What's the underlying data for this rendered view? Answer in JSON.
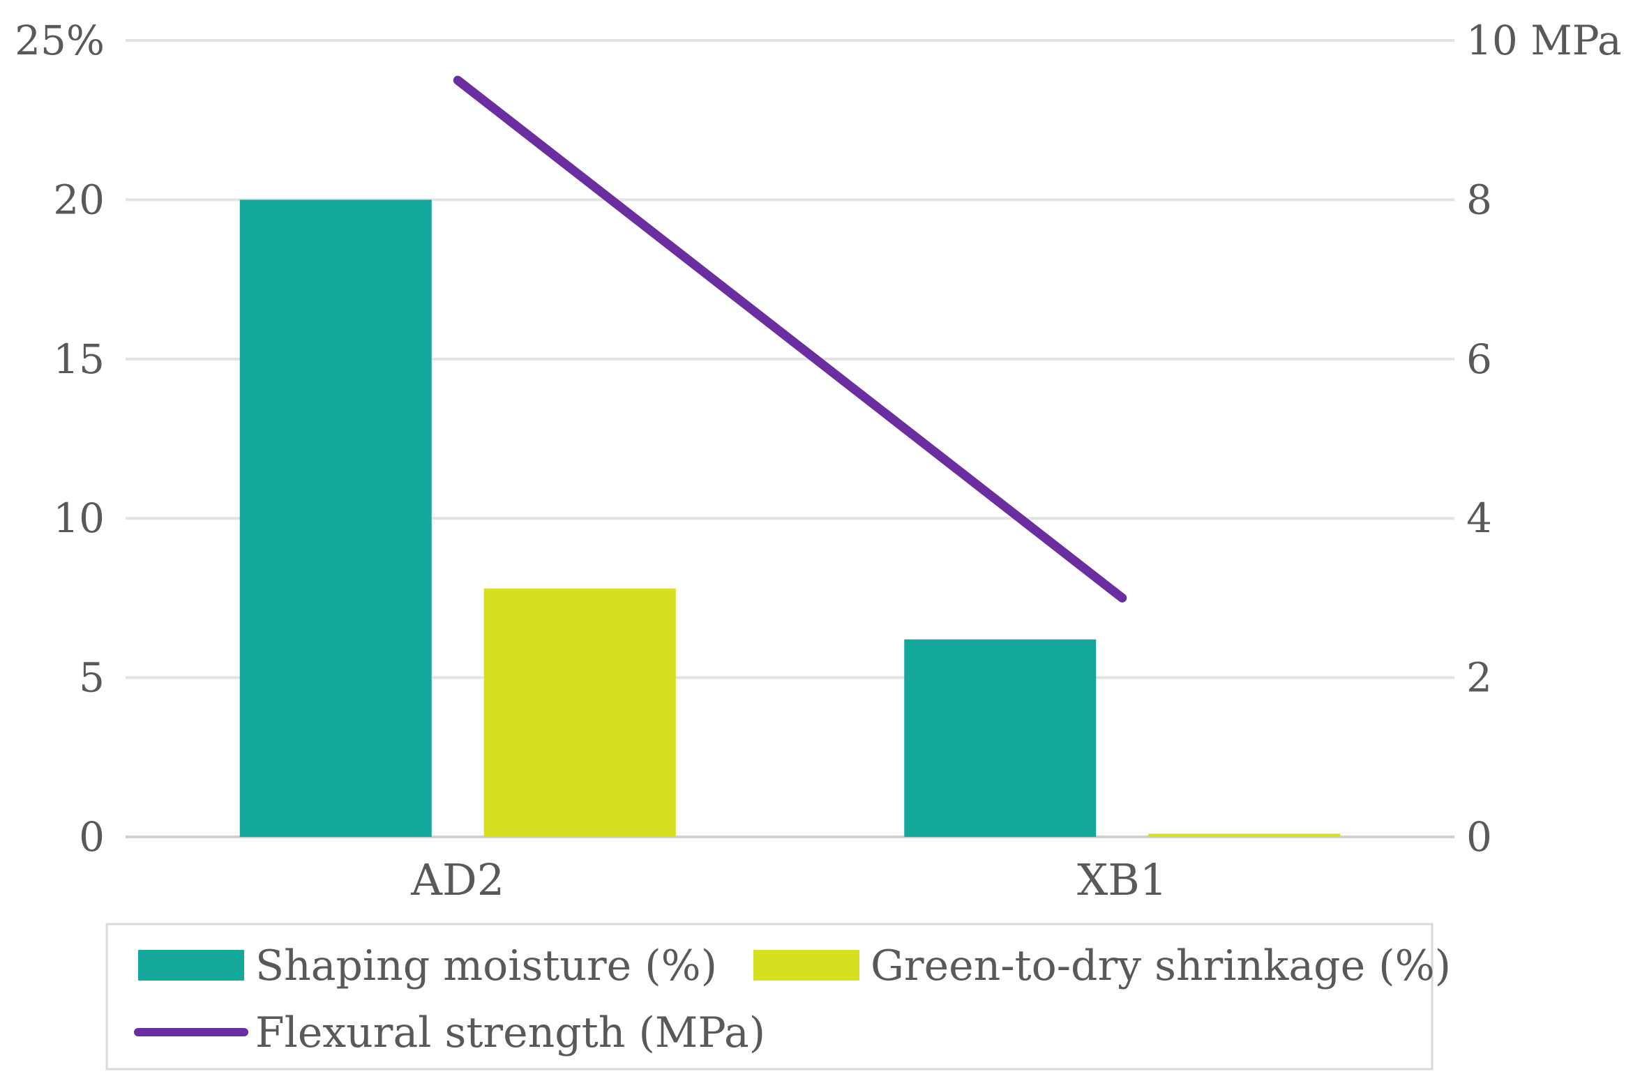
{
  "chart_data": {
    "type": "bar",
    "categories": [
      "AD2",
      "XB1"
    ],
    "series": [
      {
        "name": "Shaping moisture (%)",
        "kind": "bar",
        "axis": "left",
        "color": "#14a89c",
        "values": [
          20.0,
          6.2
        ]
      },
      {
        "name": "Green-to-dry shrinkage (%)",
        "kind": "bar",
        "axis": "left",
        "color": "#d6e021",
        "values": [
          7.8,
          0.1
        ]
      },
      {
        "name": "Flexural strength (MPa)",
        "kind": "line",
        "axis": "right",
        "color": "#6b2ea0",
        "values": [
          9.5,
          3.0
        ]
      }
    ],
    "y_left": {
      "ylim": [
        0,
        25
      ],
      "ticks": [
        "0",
        "5",
        "10",
        "15",
        "20",
        "25%"
      ],
      "tick_values": [
        0,
        5,
        10,
        15,
        20,
        25
      ]
    },
    "y_right": {
      "ylim": [
        0,
        10
      ],
      "ticks": [
        "0",
        "2",
        "4",
        "6",
        "8",
        "10 MPa"
      ],
      "tick_values": [
        0,
        2,
        4,
        6,
        8,
        10
      ]
    },
    "grid": true,
    "legend_position": "bottom"
  }
}
